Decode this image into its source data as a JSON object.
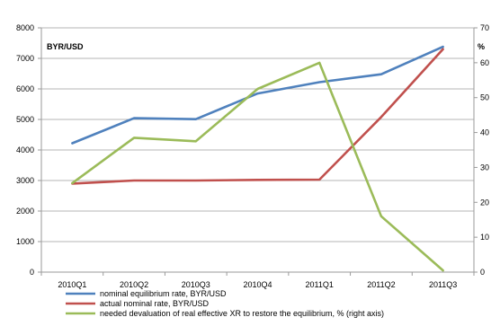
{
  "chart_data": {
    "type": "line",
    "categories": [
      "2010Q1",
      "2010Q2",
      "2010Q3",
      "2010Q4",
      "2011Q1",
      "2011Q2",
      "2011Q3"
    ],
    "left_axis": {
      "label": "BYR/USD",
      "ylim": [
        0,
        8000
      ],
      "ticks": [
        "0",
        "1000",
        "2000",
        "3000",
        "4000",
        "5000",
        "6000",
        "7000",
        "8000"
      ]
    },
    "right_axis": {
      "label": "%",
      "ylim": [
        0,
        70
      ],
      "ticks": [
        "0",
        "10",
        "20",
        "30",
        "40",
        "50",
        "60",
        "70"
      ]
    },
    "grid": "horizontal",
    "legend_position": "bottom",
    "series": [
      {
        "name": "nominal equilibrium rate, BYR/USD",
        "axis": "left",
        "color": "#4F81BD",
        "values": [
          4220,
          5040,
          5010,
          5850,
          6220,
          6480,
          7380
        ]
      },
      {
        "name": "actual nominal rate, BYR/USD",
        "axis": "left",
        "color": "#C0504D",
        "values": [
          2900,
          3000,
          3000,
          3020,
          3030,
          5080,
          7300
        ]
      },
      {
        "name": "needed devaluation of real effective XR to restore the equilibrium, % (right axis)",
        "axis": "right",
        "color": "#9BBB59",
        "values": [
          25.5,
          38.5,
          37.5,
          52.5,
          60,
          16,
          0.5
        ]
      }
    ]
  }
}
